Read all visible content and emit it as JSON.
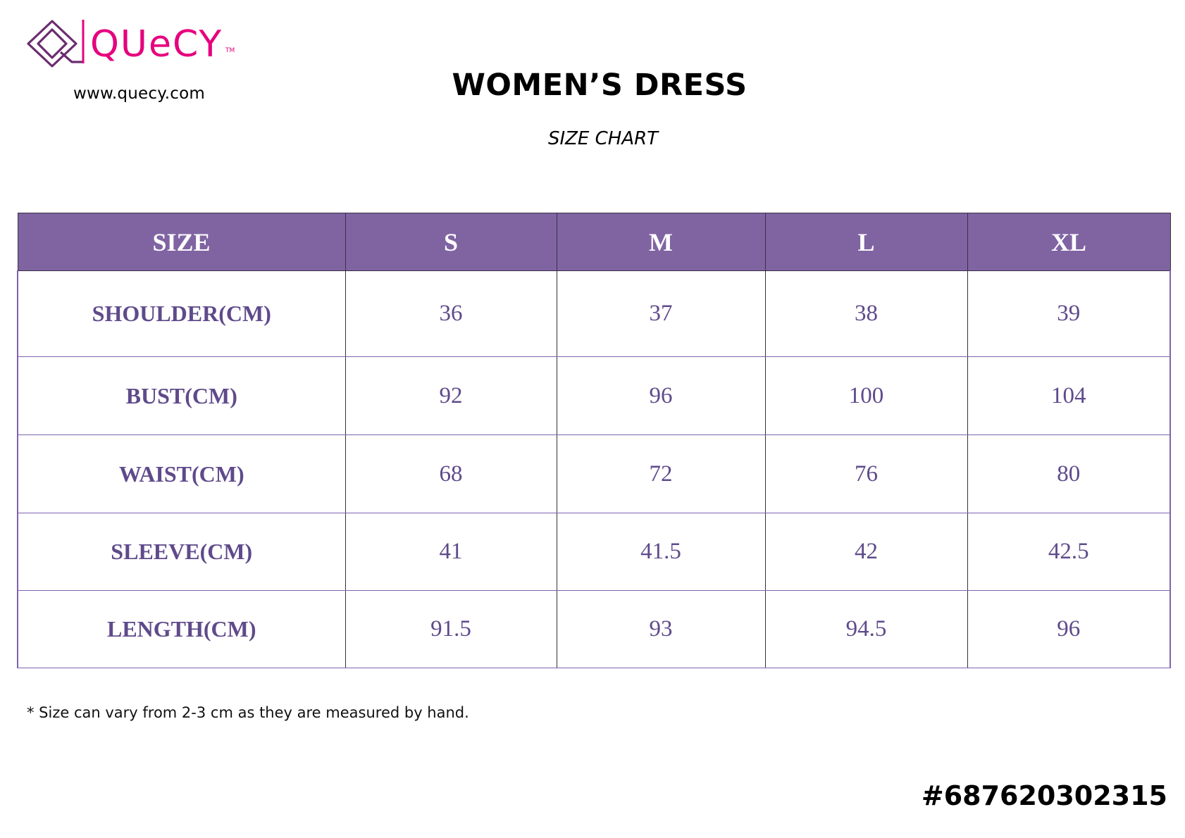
{
  "brand": {
    "logo_icon": "quecy-diamond-q-logo",
    "logo_text": "QUeCY",
    "trademark": "TM",
    "url": "www.quecy.com",
    "colors": {
      "pink": "#e6007e",
      "purple": "#6b2c6f"
    }
  },
  "title": "WOMEN’S DRESS",
  "subtitle": "SIZE CHART",
  "table": {
    "header_color": "#8064a2",
    "text_color": "#5f4a8b",
    "columns": [
      "SIZE",
      "S",
      "M",
      "L",
      "XL"
    ],
    "rows": [
      {
        "label": "SHOULDER(CM)",
        "values": [
          "36",
          "37",
          "38",
          "39"
        ]
      },
      {
        "label": "BUST(CM)",
        "values": [
          "92",
          "96",
          "100",
          "104"
        ]
      },
      {
        "label": "WAIST(CM)",
        "values": [
          "68",
          "72",
          "76",
          "80"
        ]
      },
      {
        "label": "SLEEVE(CM)",
        "values": [
          "41",
          "41.5",
          "42",
          "42.5"
        ]
      },
      {
        "label": "LENGTH(CM)",
        "values": [
          "91.5",
          "93",
          "94.5",
          "96"
        ]
      }
    ]
  },
  "footnote": "* Size can vary from 2-3 cm as they are measured by hand.",
  "sku": "#687620302315"
}
